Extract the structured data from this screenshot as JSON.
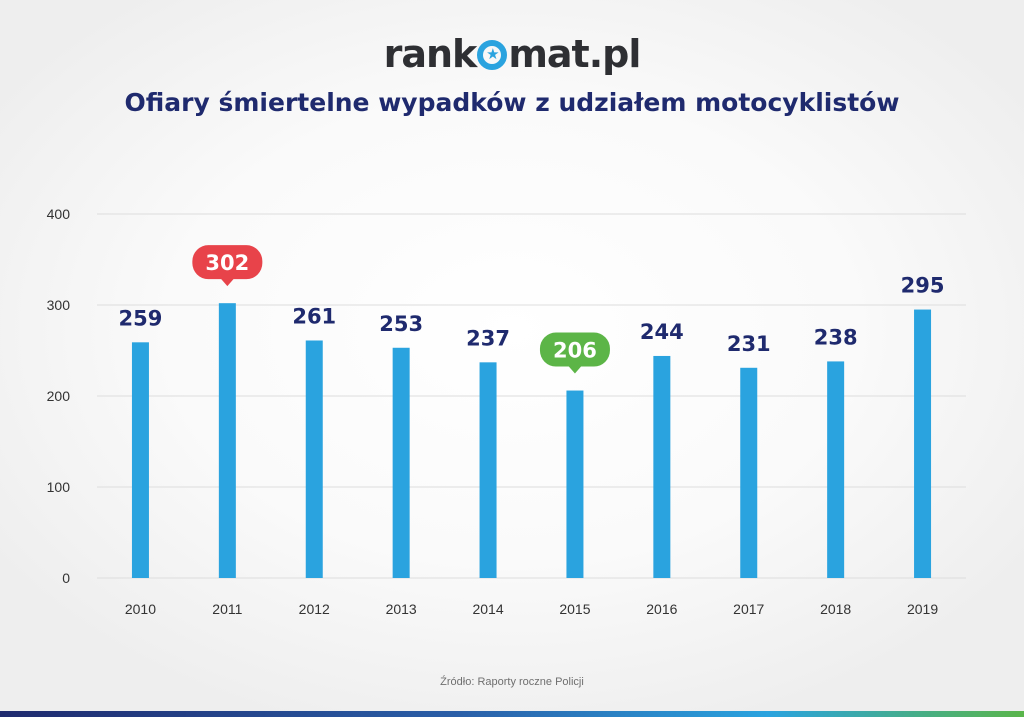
{
  "logo": {
    "text_before": "rank",
    "text_after": "mat.pl"
  },
  "title": "Ofiary śmiertelne wypadków z udziałem motocyklistów",
  "source": "Źródło: Raporty roczne Policji",
  "colors": {
    "bar": "#2aa3df",
    "label": "#1f2a6e",
    "highlight_max": "#e8434a",
    "highlight_min": "#5cb547",
    "grid": "#dddddd",
    "axis_text": "#333333"
  },
  "chart_data": {
    "type": "bar",
    "title": "Ofiary śmiertelne wypadków z udziałem motocyklistów",
    "categories": [
      "2010",
      "2011",
      "2012",
      "2013",
      "2014",
      "2015",
      "2016",
      "2017",
      "2018",
      "2019"
    ],
    "values": [
      259,
      302,
      261,
      253,
      237,
      206,
      244,
      231,
      238,
      295
    ],
    "data_labels": [
      "259",
      "302",
      "261",
      "253",
      "237",
      "206",
      "244",
      "231",
      "238",
      "295"
    ],
    "highlights": {
      "max_index": 1,
      "min_index": 5
    },
    "yticks": [
      "0",
      "100",
      "200",
      "300",
      "400"
    ],
    "ylim": [
      0,
      400
    ],
    "xlabel": "",
    "ylabel": "",
    "grid": true,
    "legend": "none"
  }
}
